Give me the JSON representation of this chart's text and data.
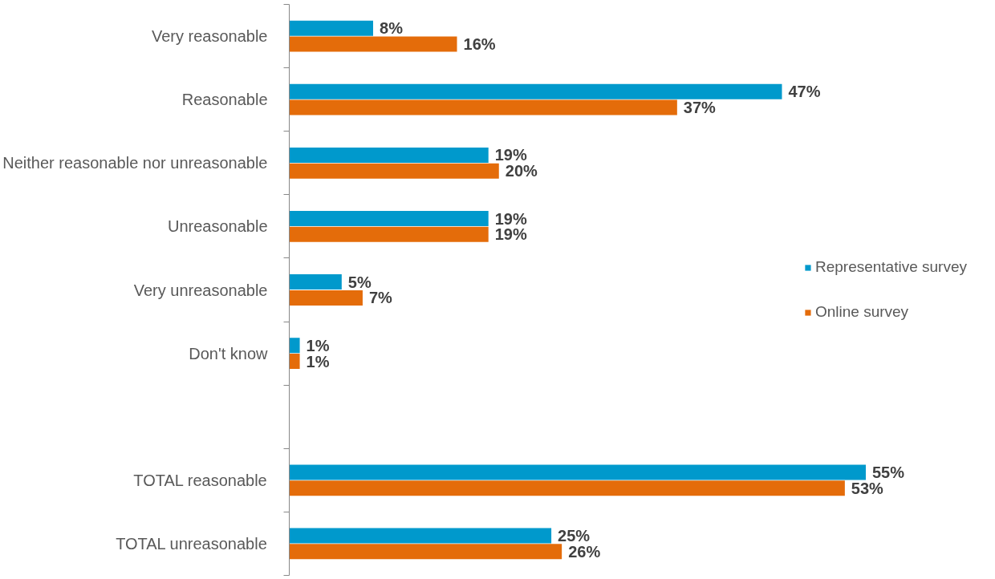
{
  "chart_data": {
    "type": "bar",
    "orientation": "horizontal",
    "categories": [
      "Very reasonable",
      "Reasonable",
      "Neither reasonable nor unreasonable",
      "Unreasonable",
      "Very unreasonable",
      "Don't know",
      null,
      "TOTAL reasonable",
      "TOTAL unreasonable"
    ],
    "series": [
      {
        "name": "Representative survey",
        "color": "#0099cc",
        "values": [
          8,
          47,
          19,
          19,
          5,
          1,
          null,
          55,
          25
        ],
        "value_labels": [
          "8%",
          "47%",
          "19%",
          "19%",
          "5%",
          "1%",
          null,
          "55%",
          "25%"
        ]
      },
      {
        "name": "Online survey",
        "color": "#e46c0a",
        "values": [
          16,
          37,
          20,
          19,
          7,
          1,
          null,
          53,
          26
        ],
        "value_labels": [
          "16%",
          "37%",
          "20%",
          "19%",
          "7%",
          "1%",
          null,
          "53%",
          "26%"
        ]
      }
    ],
    "legend": "right",
    "tick_labels": "y",
    "grid": false
  }
}
